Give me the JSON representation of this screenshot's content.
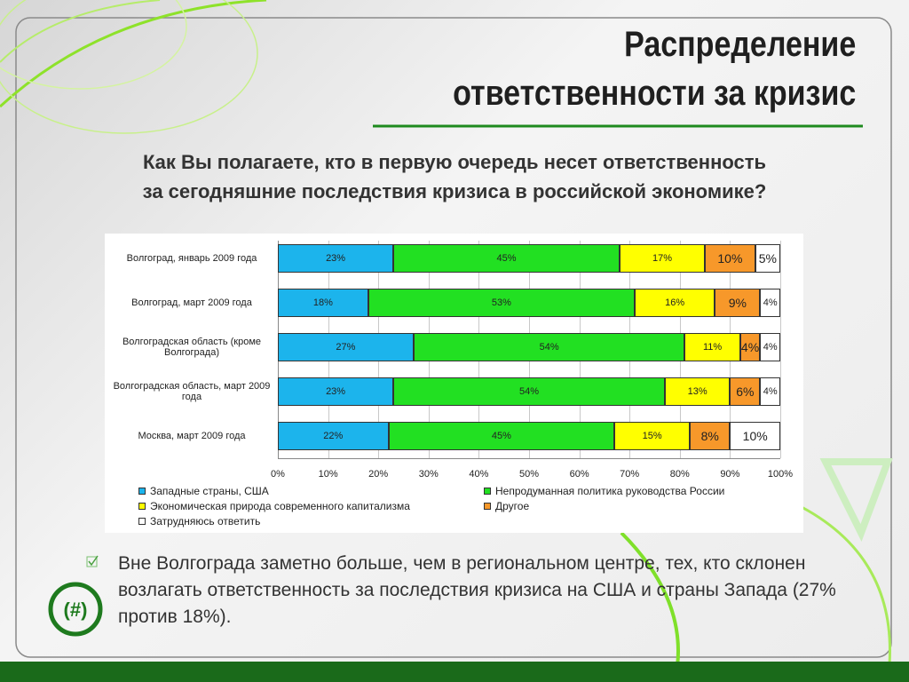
{
  "slide": {
    "title_lines": [
      "Распределение",
      "ответственности за кризис"
    ],
    "question_lines": [
      "Как Вы полагаете, кто в первую очередь несет ответственность",
      "за сегодняшние последствия кризиса в российской экономике?"
    ],
    "bullet": "Вне Волгограда заметно больше, чем в региональном центре, тех, кто склонен возлагать ответственность за последствия кризиса на США и страны Запада (27% против 18%)."
  },
  "chart_data": {
    "type": "stacked-bar-horizontal",
    "categories": [
      "Волгоград, январь 2009 года",
      "Волгоград, март 2009 года",
      "Волгоградская область (кроме Волгограда)",
      "Волгоградская область, март 2009 года",
      "Москва, март 2009 года"
    ],
    "series": [
      {
        "name": "Западные страны, США",
        "color": "#1cb4ec",
        "values": [
          23,
          18,
          27,
          23,
          22
        ],
        "value_labels": [
          "23%",
          "18%",
          "27%",
          "23%",
          "22%"
        ]
      },
      {
        "name": "Непродуманная политика руководства России",
        "color": "#22e022",
        "values": [
          45,
          53,
          54,
          54,
          45
        ],
        "value_labels": [
          "45%",
          "53%",
          "54%",
          "54%",
          "45%"
        ]
      },
      {
        "name": "Экономическая природа современного капитализма",
        "color": "#ffff00",
        "values": [
          17,
          16,
          11,
          13,
          15
        ],
        "value_labels": [
          "17%",
          "16%",
          "11%",
          "13%",
          "15%"
        ]
      },
      {
        "name": "Другое",
        "color": "#f7982a",
        "values": [
          10,
          9,
          4,
          6,
          8
        ],
        "value_labels": [
          "10%",
          "9%",
          "4%",
          "6%",
          "8%"
        ]
      },
      {
        "name": "Затрудняюсь ответить",
        "color": "#ffffff",
        "values": [
          5,
          4,
          4,
          4,
          10
        ],
        "value_labels": [
          "5%",
          "4%",
          "4%",
          "4%",
          "10%"
        ]
      }
    ],
    "xlim": [
      0,
      100
    ],
    "xticks": [
      {
        "value": 0,
        "label": "0%"
      },
      {
        "value": 10,
        "label": "10%"
      },
      {
        "value": 20,
        "label": "20%"
      },
      {
        "value": 30,
        "label": "30%"
      },
      {
        "value": 40,
        "label": "40%"
      },
      {
        "value": 50,
        "label": "50%"
      },
      {
        "value": 60,
        "label": "60%"
      },
      {
        "value": 70,
        "label": "70%"
      },
      {
        "value": 80,
        "label": "80%"
      },
      {
        "value": 90,
        "label": "90%"
      },
      {
        "value": 100,
        "label": "100%"
      }
    ],
    "grid": true
  }
}
